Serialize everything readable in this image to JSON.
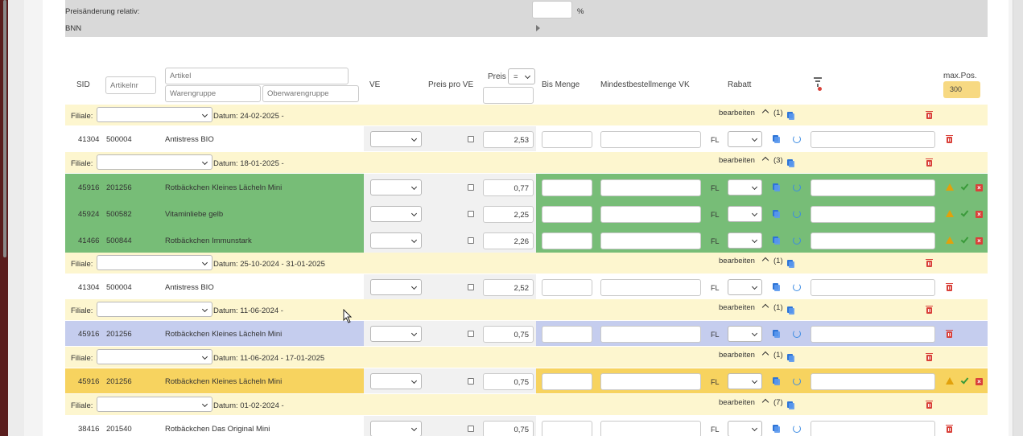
{
  "top": {
    "price_change_label": "Preisänderung relativ:",
    "percent_sign": "%",
    "bnn_label": "BNN"
  },
  "header": {
    "sid": "SID",
    "artikelnr_placeholder": "Artikelnr",
    "artikel_placeholder": "Artikel",
    "warengruppe_placeholder": "Warengruppe",
    "oberwarengruppe_placeholder": "Oberwarengruppe",
    "ve": "VE",
    "preis_pro_ve": "Preis pro VE",
    "preis": "Preis",
    "preis_op": "=",
    "bis_menge": "Bis Menge",
    "mindestbestellmenge": "Mindestbestellmenge VK",
    "rabatt": "Rabatt",
    "max_pos_label": "max.Pos.",
    "max_pos_value": "300"
  },
  "labels": {
    "filiale": "Filiale:",
    "bearbeiten": "bearbeiten",
    "fl": "FL"
  },
  "groups": [
    {
      "datum": "Datum: 24-02-2025 -",
      "count": "(1)",
      "rows": [
        {
          "sid": "41304",
          "nr": "500004",
          "name": "Antistress BIO",
          "preis": "2,53",
          "state": "normal"
        }
      ]
    },
    {
      "datum": "Datum: 18-01-2025 -",
      "count": "(3)",
      "rows": [
        {
          "sid": "45916",
          "nr": "201256",
          "name": "Rotbäckchen Kleines Lächeln Mini",
          "preis": "0,77",
          "state": "green"
        },
        {
          "sid": "45924",
          "nr": "500582",
          "name": "Vitaminliebe gelb",
          "preis": "2,25",
          "state": "green"
        },
        {
          "sid": "41466",
          "nr": "500844",
          "name": "Rotbäckchen Immunstark",
          "preis": "2,26",
          "state": "green"
        }
      ]
    },
    {
      "datum": "Datum: 25-10-2024 - 31-01-2025",
      "count": "(1)",
      "rows": [
        {
          "sid": "41304",
          "nr": "500004",
          "name": "Antistress BIO",
          "preis": "2,52",
          "state": "normal"
        }
      ]
    },
    {
      "datum": "Datum: 11-06-2024 -",
      "count": "(1)",
      "rows": [
        {
          "sid": "45916",
          "nr": "201256",
          "name": "Rotbäckchen Kleines Lächeln Mini",
          "preis": "0,75",
          "state": "blue"
        }
      ]
    },
    {
      "datum": "Datum: 11-06-2024 - 17-01-2025",
      "count": "(1)",
      "rows": [
        {
          "sid": "45916",
          "nr": "201256",
          "name": "Rotbäckchen Kleines Lächeln Mini",
          "preis": "0,75",
          "state": "orange"
        }
      ]
    },
    {
      "datum": "Datum: 01-02-2024 -",
      "count": "(7)",
      "rows": [
        {
          "sid": "38416",
          "nr": "201540",
          "name": "Rotbäckchen Das Original Mini",
          "preis": "0,75",
          "state": "normal"
        }
      ]
    }
  ],
  "colors": {
    "group_bg": "#fdf6cf",
    "green": "#77bd77",
    "blue": "#c5cdee",
    "orange": "#f7d35f",
    "normal": "#ffffff"
  }
}
